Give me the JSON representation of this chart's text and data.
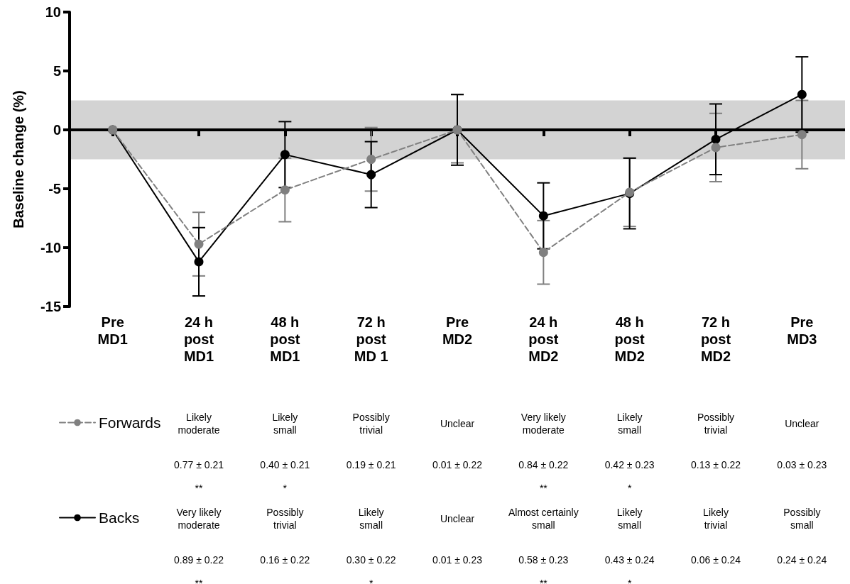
{
  "chart_data": {
    "type": "line",
    "ylabel": "Baseline change (%)",
    "categories": [
      "Pre\nMD1",
      "24 h\npost\nMD1",
      "48 h\npost\nMD1",
      "72 h\npost\nMD 1",
      "Pre\nMD2",
      "24 h\npost\nMD2",
      "48 h\npost\nMD2",
      "72 h\npost\nMD2",
      "Pre\nMD3"
    ],
    "series": [
      {
        "name": "Forwards",
        "color": "#808080",
        "line_style": "dashed",
        "values": [
          0,
          -9.7,
          -5.1,
          -2.5,
          0,
          -10.4,
          -5.3,
          -1.5,
          -0.4
        ],
        "errors": [
          null,
          2.7,
          2.7,
          2.7,
          [
            -2.8,
            3.0
          ],
          2.7,
          2.9,
          2.9,
          2.9
        ]
      },
      {
        "name": "Backs",
        "color": "#000000",
        "line_style": "solid",
        "values": [
          0,
          -11.2,
          -2.1,
          -3.8,
          0,
          -7.3,
          -5.4,
          -0.8,
          3.0
        ],
        "errors": [
          null,
          2.9,
          2.8,
          2.8,
          3.0,
          2.8,
          3.0,
          3.0,
          3.2
        ]
      }
    ],
    "ylim": [
      -15,
      10
    ],
    "yticks": [
      -15,
      -10,
      -5,
      0,
      5,
      10
    ],
    "bands": [
      {
        "axis": "y",
        "from": -2.5,
        "to": 2.5,
        "color": "#d3d3d3"
      }
    ],
    "ref_lines": [
      {
        "axis": "y",
        "value": 0,
        "color": "#000000"
      }
    ],
    "marker": "circle",
    "legend": "bottom left",
    "annotations": [
      "Likely\nmoderate",
      "Likely\nsmall",
      "Possibly\ntrivial",
      "Unclear",
      "Very likely\nmoderate",
      "Likely\nsmall",
      "Possibly\ntrivial",
      "Unclear",
      "0.77 ± 0.21\n**",
      "0.40 ± 0.21\n*",
      "0.19 ± 0.21",
      "0.01 ± 0.22",
      "0.84 ± 0.22\n**",
      "0.42 ± 0.23\n*",
      "0.13 ± 0.22",
      "0.03 ± 0.23",
      "Very likely\nmoderate",
      "Possibly\ntrivial",
      "Likely\nsmall",
      "Unclear",
      "Almost certainly\nsmall",
      "Likely\nsmall",
      "Likely\ntrivial",
      "Possibly\nsmall",
      "0.89 ± 0.22\n**",
      "0.16 ± 0.22",
      "0.30 ± 0.22\n*",
      "0.01 ± 0.23",
      "0.58 ± 0.23\n**",
      "0.43 ± 0.24\n*",
      "0.06 ± 0.24",
      "0.24 ± 0.24"
    ]
  }
}
